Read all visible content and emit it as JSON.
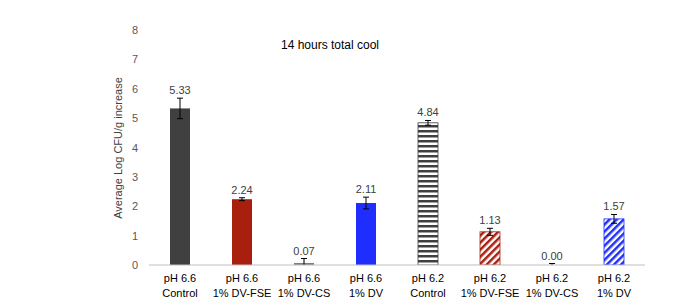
{
  "chart_data": {
    "type": "bar",
    "title": "14 hours total cool",
    "y_label": "Average Log CFU/g increase",
    "categories": [
      "pH 6.6 Control",
      "pH 6.6 1% DV-FSE",
      "pH 6.6 1% DV-CS",
      "pH 6.6 1% DV",
      "pH 6.2 Control",
      "pH 6.2 1% DV-FSE",
      "pH 6.2 1% DV-CS",
      "pH 6.2 1% DV"
    ],
    "values": [
      5.33,
      2.24,
      0.07,
      2.11,
      4.84,
      1.13,
      0.0,
      1.57
    ],
    "value_labels": [
      "5.33",
      "2.24",
      "0.07",
      "2.11",
      "4.84",
      "1.13",
      "0.00",
      "1.57"
    ],
    "errors": [
      0.35,
      0.05,
      0.15,
      0.2,
      0.08,
      0.12,
      0.05,
      0.15
    ],
    "colors": [
      "#404040",
      "#a8200d",
      "#7f7f7f",
      "#1f2eff",
      "#404040",
      "#a8200d",
      "#7f7f7f",
      "#1f2eff"
    ],
    "ylim": [
      0,
      8
    ],
    "yticks": [
      0,
      1,
      2,
      3,
      4,
      5,
      6,
      7,
      8
    ],
    "grid": false,
    "data_labels": true
  }
}
